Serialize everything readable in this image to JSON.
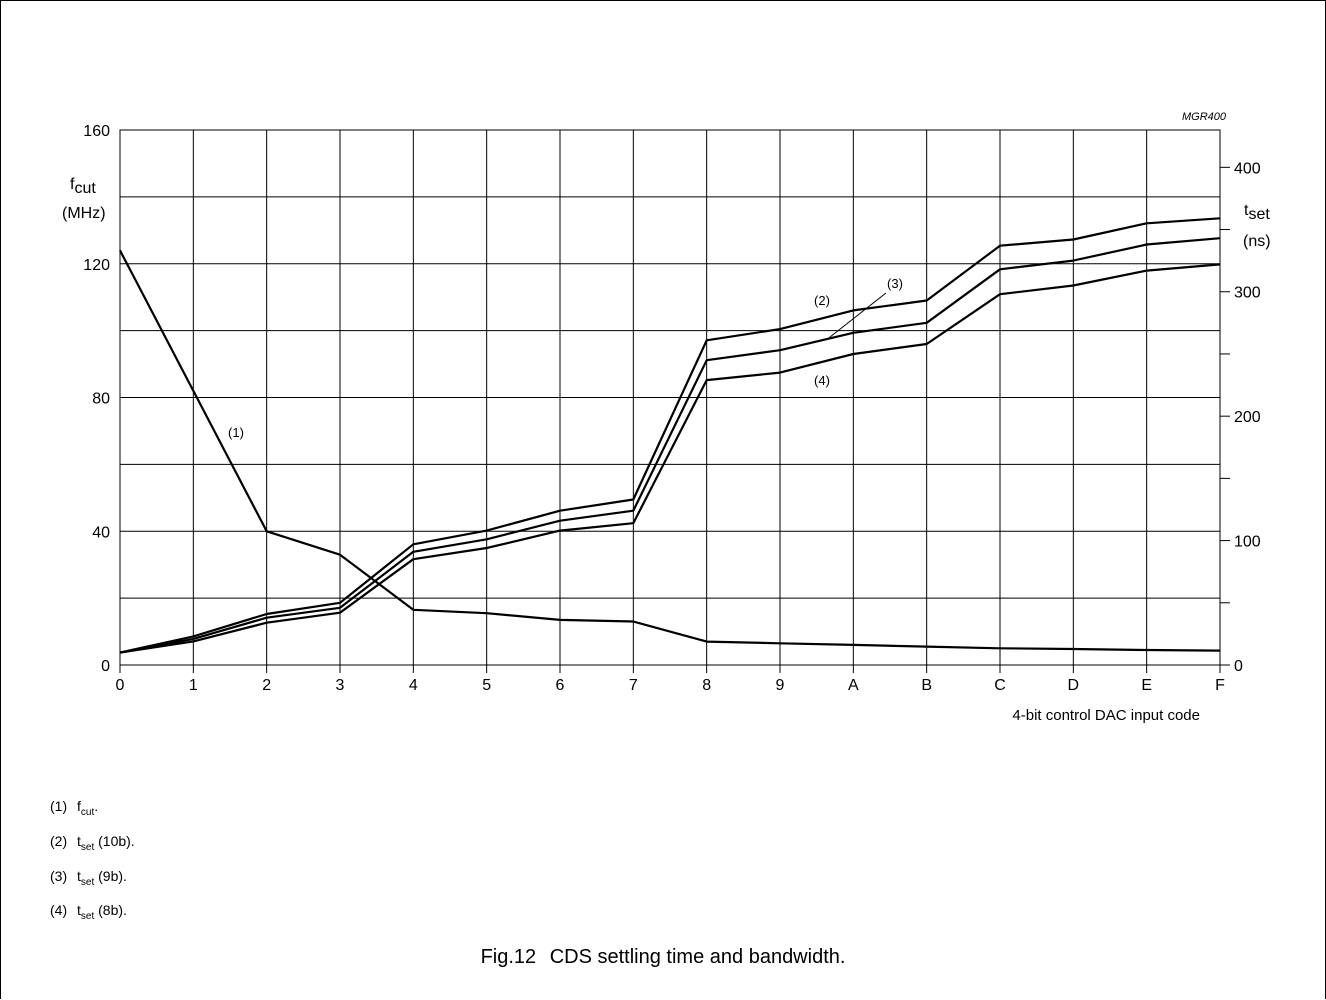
{
  "chart_data": {
    "type": "line",
    "code": "MGR400",
    "x": [
      "0",
      "1",
      "2",
      "3",
      "4",
      "5",
      "6",
      "7",
      "8",
      "9",
      "A",
      "B",
      "C",
      "D",
      "E",
      "F"
    ],
    "xlabel": "4-bit control DAC input code",
    "left_axis": {
      "label": "f",
      "label_sub": "cut",
      "unit": "(MHz)",
      "range": [
        0,
        160
      ],
      "ticks": [
        "0",
        "40",
        "80",
        "120",
        "160"
      ]
    },
    "right_axis": {
      "label": "t",
      "label_sub": "set",
      "unit": "(ns)",
      "range": [
        0,
        430
      ],
      "ticks": [
        "0",
        "100",
        "200",
        "300",
        "400"
      ]
    },
    "series": [
      {
        "key": "(1)",
        "axis": "left",
        "values": [
          124,
          82,
          40,
          33,
          16.5,
          15.5,
          13.5,
          13,
          7,
          6.5,
          6,
          5.5,
          5,
          4.8,
          4.5,
          4.3
        ]
      },
      {
        "key": "(2)",
        "axis": "right",
        "values": [
          10,
          23,
          41,
          50,
          97,
          108,
          124,
          133,
          261,
          270,
          285,
          293,
          337,
          342,
          355,
          359
        ]
      },
      {
        "key": "(3)",
        "axis": "right",
        "values": [
          10,
          21,
          38,
          46,
          91,
          101,
          116,
          124,
          245,
          253,
          267,
          275,
          318,
          325,
          338,
          343
        ]
      },
      {
        "key": "(4)",
        "axis": "right",
        "values": [
          10,
          19,
          34,
          42,
          85,
          94,
          108,
          114,
          229,
          235,
          250,
          258,
          298,
          305,
          317,
          322
        ]
      }
    ],
    "annotations": [
      "(1)",
      "(2)",
      "(3)",
      "(4)"
    ]
  },
  "notes": [
    {
      "num": "(1)",
      "sym": "f",
      "sub": "cut",
      "tail": "."
    },
    {
      "num": "(2)",
      "sym": "t",
      "sub": "set",
      "tail": " (10b)."
    },
    {
      "num": "(3)",
      "sym": "t",
      "sub": "set",
      "tail": " (9b)."
    },
    {
      "num": "(4)",
      "sym": "t",
      "sub": "set",
      "tail": " (8b)."
    }
  ],
  "caption": {
    "fig": "Fig.12",
    "text": "CDS settling time and bandwidth."
  }
}
